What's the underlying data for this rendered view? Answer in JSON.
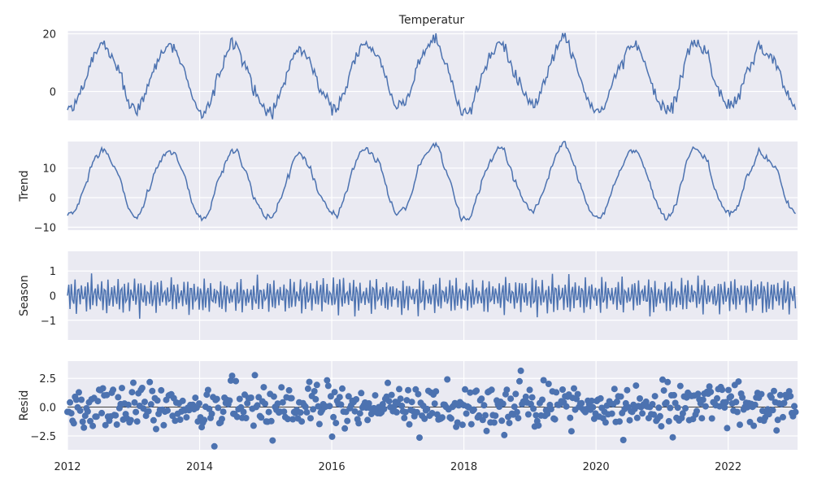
{
  "chart_data": {
    "type": "line",
    "title": "Temperatur",
    "x_range": [
      2012.0,
      2023.05
    ],
    "x_ticks": [
      2012,
      2014,
      2016,
      2018,
      2020,
      2022
    ],
    "x_tick_labels": [
      "2012",
      "2014",
      "2016",
      "2018",
      "2020",
      "2022"
    ],
    "grid": true,
    "color": "#4c72b0",
    "series_generation": "approximate reconstruction of seasonal decomposition (weekly samples)",
    "panels": [
      {
        "name": "observed",
        "ylabel": "",
        "type": "line",
        "ylim": [
          -10,
          21
        ],
        "yticks": [
          0,
          20
        ],
        "ytick_labels": [
          "0",
          "20"
        ]
      },
      {
        "name": "trend",
        "ylabel": "Trend",
        "type": "line",
        "ylim": [
          -11,
          19
        ],
        "yticks": [
          -10,
          0,
          10
        ],
        "ytick_labels": [
          "−10",
          "0",
          "10"
        ]
      },
      {
        "name": "seasonal",
        "ylabel": "Season",
        "type": "line",
        "ylim": [
          -1.8,
          1.8
        ],
        "yticks": [
          -1,
          0,
          1
        ],
        "ytick_labels": [
          "−1",
          "0",
          "1"
        ]
      },
      {
        "name": "resid",
        "ylabel": "Resid",
        "type": "scatter",
        "ylim": [
          -3.7,
          4.0
        ],
        "yticks": [
          -2.5,
          0.0,
          2.5
        ],
        "ytick_labels": [
          "−2.5",
          "0.0",
          "2.5"
        ],
        "zero_line": true
      }
    ]
  }
}
